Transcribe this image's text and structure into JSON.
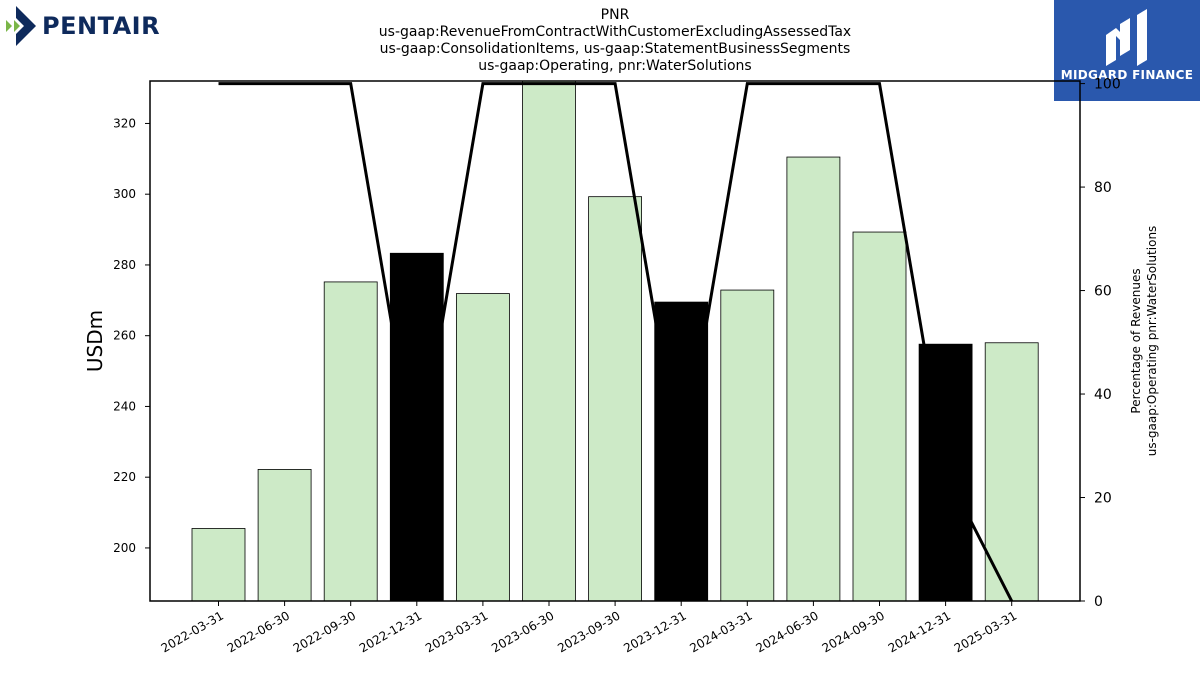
{
  "logo_left": {
    "text": "PENTAIR"
  },
  "logo_right": {
    "text": "MIDGARD FINANCE",
    "bg_color": "#2a58ad"
  },
  "chart_data": {
    "type": "bar",
    "title_lines": [
      "PNR",
      "us-gaap:RevenueFromContractWithCustomerExcludingAssessedTax",
      "us-gaap:ConsolidationItems, us-gaap:StatementBusinessSegments",
      "us-gaap:Operating, pnr:WaterSolutions"
    ],
    "ylabel": "USDm",
    "y2label_lines": [
      "Percentage of Revenues",
      "us-gaap:Operating pnr:WaterSolutions"
    ],
    "categories": [
      "2022-03-31",
      "2022-06-30",
      "2022-09-30",
      "2022-12-31",
      "2023-03-31",
      "2023-06-30",
      "2023-09-30",
      "2023-12-31",
      "2024-03-31",
      "2024-06-30",
      "2024-09-30",
      "2024-12-31",
      "2025-03-31"
    ],
    "values": [
      205.5,
      222.2,
      275.2,
      283.3,
      271.9,
      332.5,
      299.3,
      269.5,
      272.9,
      310.5,
      289.3,
      257.6,
      258.0
    ],
    "highlight": [
      false,
      false,
      false,
      true,
      false,
      false,
      false,
      true,
      false,
      false,
      false,
      true,
      false
    ],
    "bar_color": "#cdeac7",
    "highlight_color": "#000000",
    "ylim": [
      185,
      332
    ],
    "yticks": [
      200,
      220,
      240,
      260,
      280,
      300,
      320
    ],
    "percentage": [
      100,
      100,
      100,
      25,
      100,
      100,
      100,
      25,
      100,
      100,
      100,
      25,
      0
    ],
    "y2lim": [
      0,
      100.5
    ],
    "y2ticks": [
      0,
      20,
      40,
      60,
      80,
      100
    ]
  }
}
